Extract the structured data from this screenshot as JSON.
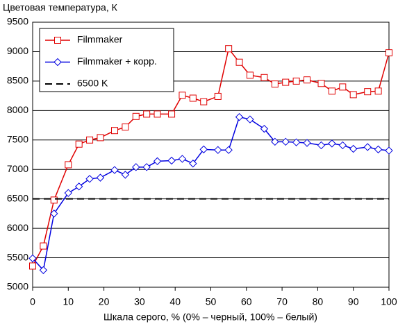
{
  "chart_data": {
    "type": "line",
    "title": "Цветовая температура, К",
    "x_label": "Шкала серого, % (0% – черный, 100% – белый)",
    "xlim": [
      0,
      100
    ],
    "xticks": [
      0,
      10,
      20,
      30,
      40,
      50,
      60,
      70,
      80,
      90,
      100
    ],
    "ylim": [
      5000,
      9500
    ],
    "yticks": [
      5000,
      5500,
      6000,
      6500,
      7000,
      7500,
      8000,
      8500,
      9000,
      9500
    ],
    "grid": true,
    "legend": "upper left",
    "x": [
      0,
      3,
      6,
      10,
      13,
      16,
      19,
      23,
      26,
      29,
      32,
      35,
      39,
      42,
      45,
      48,
      52,
      55,
      58,
      61,
      65,
      68,
      71,
      74,
      77,
      81,
      84,
      87,
      90,
      94,
      97,
      100
    ],
    "series": [
      {
        "name": "Filmmaker",
        "color": "#e00000",
        "marker": "square",
        "values": [
          5360,
          5700,
          6480,
          7080,
          7430,
          7500,
          7540,
          7660,
          7720,
          7900,
          7940,
          7940,
          7940,
          8260,
          8210,
          8150,
          8240,
          9050,
          8820,
          8600,
          8560,
          8450,
          8480,
          8500,
          8520,
          8460,
          8330,
          8400,
          8270,
          8320,
          8330,
          8980
        ]
      },
      {
        "name": "Filmmaker + корр.",
        "color": "#0000e0",
        "marker": "diamond",
        "values": [
          5490,
          5290,
          6250,
          6600,
          6710,
          6840,
          6860,
          6990,
          6910,
          7040,
          7040,
          7140,
          7150,
          7180,
          7100,
          7340,
          7330,
          7330,
          7890,
          7850,
          7690,
          7470,
          7470,
          7460,
          7450,
          7410,
          7440,
          7410,
          7350,
          7380,
          7340,
          7320
        ]
      },
      {
        "name": "6500 K",
        "color": "#000000",
        "dashed": true,
        "x": [
          0,
          100
        ],
        "values": [
          6500,
          6500
        ]
      }
    ]
  }
}
